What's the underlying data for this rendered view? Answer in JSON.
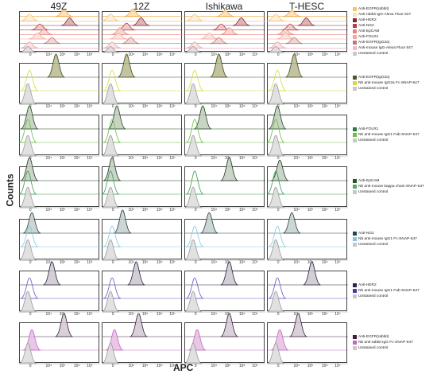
{
  "chart_data": {
    "type": "histogram-grid",
    "columns": [
      "49Z",
      "12Z",
      "Ishikawa",
      "T-HESC"
    ],
    "xlabel": "APC",
    "ylabel": "Counts",
    "x_ticks": [
      "0",
      "10⁴",
      "10⁵",
      "10⁶",
      "10⁷"
    ],
    "rows": [
      {
        "legend": [
          {
            "label": "Anti-EGFR(rabbit)",
            "color": "#f5c56a"
          },
          {
            "label": "Anti-rabbit IgG-Alexa Fluor 647",
            "color": "#fbe5bf"
          },
          {
            "label": "Anti-HER2",
            "color": "#7a2a38"
          },
          {
            "label": "Anti-NG2",
            "color": "#b33f49"
          },
          {
            "label": "Anti-EpCAM",
            "color": "#e9837c"
          },
          {
            "label": "Anti-FOLR1",
            "color": "#f2a89a"
          },
          {
            "label": "Anti-EGFR(IgG2a)",
            "color": "#c0777a"
          },
          {
            "label": "Anti-mouse IgG-Alexa Fluor 647",
            "color": "#f0bcc2"
          },
          {
            "label": "Unstained control",
            "color": "#c8c8c8"
          }
        ],
        "traces": [
          {
            "color": "#f0a540",
            "fill": "#fbdcae",
            "peaks": [
              [
                0.55,
                0.8
              ],
              [
                0.38,
                0.9
              ],
              [
                0.5,
                0.7
              ],
              [
                0.3,
                0.7
              ]
            ]
          },
          {
            "color": "#f0c080",
            "fill": "#fdeed5",
            "peaks": [
              [
                0.12,
                0.8
              ],
              [
                0.1,
                0.8
              ],
              [
                0.12,
                0.8
              ],
              [
                0.1,
                0.8
              ]
            ]
          },
          {
            "color": "#7a2a38",
            "fill": "#d9a7a8",
            "peaks": [
              [
                0.62,
                0.9
              ],
              [
                0.48,
                0.9
              ],
              [
                0.7,
                0.9
              ],
              [
                0.48,
                0.9
              ]
            ]
          },
          {
            "color": "#b33f49",
            "fill": "#f0c4c0",
            "peaks": [
              [
                0.25,
                0.7
              ],
              [
                0.3,
                0.8
              ],
              [
                0.45,
                0.7
              ],
              [
                0.28,
                0.7
              ]
            ]
          },
          {
            "color": "#e9837c",
            "fill": "#f8d2cb",
            "peaks": [
              [
                0.3,
                0.6
              ],
              [
                0.22,
                0.8
              ],
              [
                0.55,
                0.8
              ],
              [
                0.22,
                0.6
              ]
            ]
          },
          {
            "color": "#f2a89a",
            "fill": "#fbe0d8",
            "peaks": [
              [
                0.22,
                0.7
              ],
              [
                0.2,
                0.7
              ],
              [
                0.3,
                0.7
              ],
              [
                0.22,
                0.7
              ]
            ]
          },
          {
            "color": "#c0777a",
            "fill": "#edd0cf",
            "peaks": [
              [
                0.4,
                0.7
              ],
              [
                0.35,
                0.7
              ],
              [
                0.42,
                0.7
              ],
              [
                0.33,
                0.7
              ]
            ]
          },
          {
            "color": "#e8a0ab",
            "fill": "#fae0e4",
            "peaks": [
              [
                0.12,
                0.7
              ],
              [
                0.12,
                0.7
              ],
              [
                0.12,
                0.7
              ],
              [
                0.12,
                0.7
              ]
            ]
          },
          {
            "color": "#999999",
            "fill": "#dcdcdc",
            "peaks": [
              [
                0.1,
                0.7
              ],
              [
                0.1,
                0.7
              ],
              [
                0.1,
                0.7
              ],
              [
                0.1,
                0.7
              ]
            ]
          }
        ]
      },
      {
        "legend": [
          {
            "label": "Anti-EGFR(IgG2a)",
            "color": "#4a5a2a"
          },
          {
            "label": "Nb anti-mouse IgG2a Fc-SNAP-647",
            "color": "#d6dc3a"
          },
          {
            "label": "Unstained control",
            "color": "#c8c8c8"
          }
        ],
        "traces": [
          {
            "color": "#3d4a24",
            "fill": "#b9b98c",
            "peaks": [
              [
                0.45,
                0.9
              ],
              [
                0.3,
                0.9
              ],
              [
                0.42,
                0.9
              ],
              [
                0.33,
                0.9
              ]
            ]
          },
          {
            "color": "#d6dc3a",
            "fill": "none",
            "peaks": [
              [
                0.12,
                0.8
              ],
              [
                0.12,
                0.8
              ],
              [
                0.12,
                0.8
              ],
              [
                0.12,
                0.8
              ]
            ]
          },
          {
            "color": "#999999",
            "fill": "#dcdcdc",
            "peaks": [
              [
                0.1,
                0.8
              ],
              [
                0.1,
                0.8
              ],
              [
                0.1,
                0.8
              ],
              [
                0.1,
                0.8
              ]
            ]
          }
        ]
      },
      {
        "legend": [
          {
            "label": "Anti-FOLR1",
            "color": "#2e7a3a"
          },
          {
            "label": "Nb anti-mouse IgG1 Fab-SNAP-647",
            "color": "#6bbf45"
          },
          {
            "label": "Unstained control",
            "color": "#c8c8c8"
          }
        ],
        "traces": [
          {
            "color": "#234a26",
            "fill": "#c0ccb8",
            "peaks": [
              [
                0.12,
                0.9
              ],
              [
                0.18,
                0.9
              ],
              [
                0.22,
                0.9
              ],
              [
                0.12,
                0.9
              ]
            ]
          },
          {
            "color": "#6bbf45",
            "fill": "none",
            "peaks": [
              [
                0.1,
                0.9
              ],
              [
                0.12,
                0.9
              ],
              [
                0.12,
                0.9
              ],
              [
                0.1,
                0.9
              ]
            ]
          },
          {
            "color": "#999999",
            "fill": "#dcdcdc",
            "peaks": [
              [
                0.1,
                0.8
              ],
              [
                0.1,
                0.8
              ],
              [
                0.1,
                0.8
              ],
              [
                0.1,
                0.8
              ]
            ]
          }
        ]
      },
      {
        "legend": [
          {
            "label": "Anti-EpCAM",
            "color": "#1f5a2e"
          },
          {
            "label": "Nb anti-mouse kappa chain-SNAP-647",
            "color": "#5aa56a"
          },
          {
            "label": "Unstained control",
            "color": "#c8c8c8"
          }
        ],
        "traces": [
          {
            "color": "#1e3a22",
            "fill": "#c3cbbf",
            "peaks": [
              [
                0.12,
                0.9
              ],
              [
                0.12,
                0.9
              ],
              [
                0.55,
                0.9
              ],
              [
                0.15,
                0.8
              ]
            ]
          },
          {
            "color": "#3da050",
            "fill": "none",
            "peaks": [
              [
                0.1,
                0.9
              ],
              [
                0.1,
                0.9
              ],
              [
                0.12,
                0.9
              ],
              [
                0.1,
                0.9
              ]
            ]
          },
          {
            "color": "#999999",
            "fill": "#dcdcdc",
            "peaks": [
              [
                0.1,
                0.8
              ],
              [
                0.1,
                0.8
              ],
              [
                0.1,
                0.8
              ],
              [
                0.1,
                0.8
              ]
            ]
          }
        ]
      },
      {
        "legend": [
          {
            "label": "Anti-NG2",
            "color": "#1f4a4a"
          },
          {
            "label": "Nb anti-mouse IgG1 Fc-SNAP-647",
            "color": "#7ec9df"
          },
          {
            "label": "Unstained control",
            "color": "#c8c8c8"
          }
        ],
        "traces": [
          {
            "color": "#2a3a3a",
            "fill": "#c4cfd0",
            "peaks": [
              [
                0.15,
                0.8
              ],
              [
                0.25,
                0.9
              ],
              [
                0.3,
                0.8
              ],
              [
                0.3,
                0.8
              ]
            ]
          },
          {
            "color": "#7ec9df",
            "fill": "none",
            "peaks": [
              [
                0.12,
                0.8
              ],
              [
                0.12,
                0.8
              ],
              [
                0.12,
                0.8
              ],
              [
                0.12,
                0.8
              ]
            ]
          },
          {
            "color": "#999999",
            "fill": "#dcdcdc",
            "peaks": [
              [
                0.1,
                0.8
              ],
              [
                0.1,
                0.8
              ],
              [
                0.1,
                0.8
              ],
              [
                0.1,
                0.8
              ]
            ]
          }
        ]
      },
      {
        "legend": [
          {
            "label": "Anti-HER2",
            "color": "#2a2445"
          },
          {
            "label": "Nb anti-mouse IgG1 Fab-SNAP-647",
            "color": "#4b3aa0"
          },
          {
            "label": "Unstained control",
            "color": "#c8c8c8"
          }
        ],
        "traces": [
          {
            "color": "#2c2440",
            "fill": "#cdc6cf",
            "peaks": [
              [
                0.4,
                0.9
              ],
              [
                0.42,
                0.9
              ],
              [
                0.55,
                0.9
              ],
              [
                0.55,
                0.9
              ]
            ]
          },
          {
            "color": "#6a52c8",
            "fill": "none",
            "peaks": [
              [
                0.12,
                0.8
              ],
              [
                0.12,
                0.8
              ],
              [
                0.12,
                0.8
              ],
              [
                0.12,
                0.8
              ]
            ]
          },
          {
            "color": "#999999",
            "fill": "#dcdcdc",
            "peaks": [
              [
                0.1,
                0.8
              ],
              [
                0.1,
                0.8
              ],
              [
                0.1,
                0.8
              ],
              [
                0.1,
                0.8
              ]
            ]
          }
        ]
      },
      {
        "legend": [
          {
            "label": "Anti-EGFR(rabbit)",
            "color": "#3a1f3a"
          },
          {
            "label": "Nb anti-rabbit IgG Fc-SNAP-647",
            "color": "#c06ac0"
          },
          {
            "label": "Unstained control",
            "color": "#c8c8c8"
          }
        ],
        "traces": [
          {
            "color": "#3a2240",
            "fill": "#d4c8d4",
            "peaks": [
              [
                0.55,
                0.9
              ],
              [
                0.45,
                0.9
              ],
              [
                0.55,
                0.9
              ],
              [
                0.38,
                0.9
              ]
            ]
          },
          {
            "color": "#c06ac0",
            "fill": "#e6bce3",
            "peaks": [
              [
                0.15,
                0.8
              ],
              [
                0.15,
                0.8
              ],
              [
                0.15,
                0.8
              ],
              [
                0.15,
                0.8
              ]
            ]
          },
          {
            "color": "#999999",
            "fill": "#dcdcdc",
            "peaks": [
              [
                0.1,
                0.8
              ],
              [
                0.1,
                0.8
              ],
              [
                0.1,
                0.8
              ],
              [
                0.1,
                0.8
              ]
            ]
          }
        ]
      }
    ]
  }
}
